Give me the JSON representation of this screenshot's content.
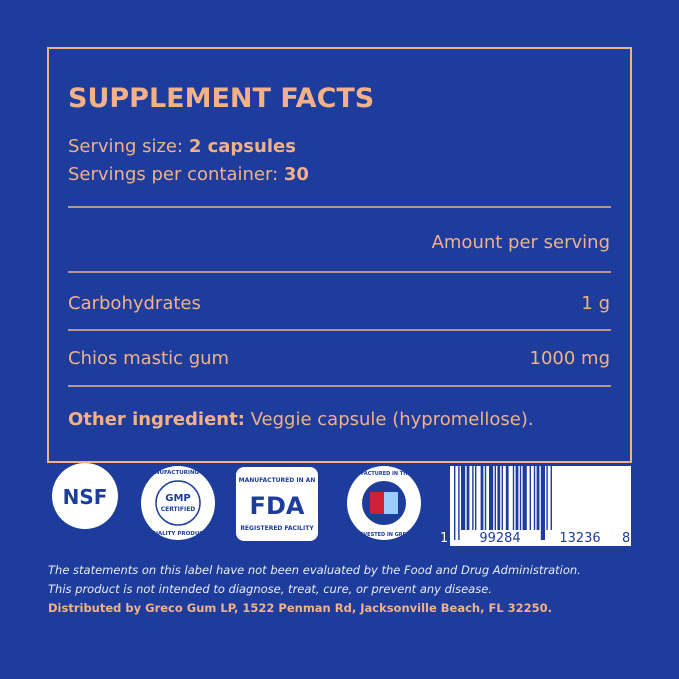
{
  "label": {
    "title": "SUPPLEMENT FACTS",
    "serving_size": {
      "label": "Serving size:",
      "value": "2 capsules"
    },
    "servings_per_container": {
      "label": "Servings per container:",
      "value": "30"
    },
    "amount_header": "Amount per serving",
    "rows": [
      [
        "Carbohydrates",
        "1 g"
      ],
      [
        "Chios mastic gum",
        "1000 mg"
      ]
    ],
    "other_ingredient": {
      "label": "Other ingredient:",
      "value": "Veggie capsule (hypromellose)."
    }
  },
  "badges": {
    "nsf": "NSF",
    "gmp": {
      "top": "GOOD MANUFACTURING PRACTICE",
      "center": "GMP",
      "center2": "CERTIFIED",
      "bottom": "QUALITY PRODUCT"
    },
    "fda": {
      "top": "MANUFACTURED IN AN",
      "center": "FDA",
      "bottom": "REGISTERED FACILITY"
    },
    "usa": {
      "top": "MANUFACTURED IN THE USA",
      "bottom": "HARVESTED IN GREECE"
    }
  },
  "barcode": {
    "digits": [
      "1",
      "99284",
      "13236",
      "8"
    ]
  },
  "footer": {
    "disclaimer": [
      "The statements on this label have not been evaluated by the Food and Drug Administration.",
      "This product is not intended to diagnose, treat, cure, or prevent any disease."
    ],
    "distributor": "Distributed by Greco Gum LP, 1522 Penman Rd, Jacksonville Beach, FL 32250."
  }
}
